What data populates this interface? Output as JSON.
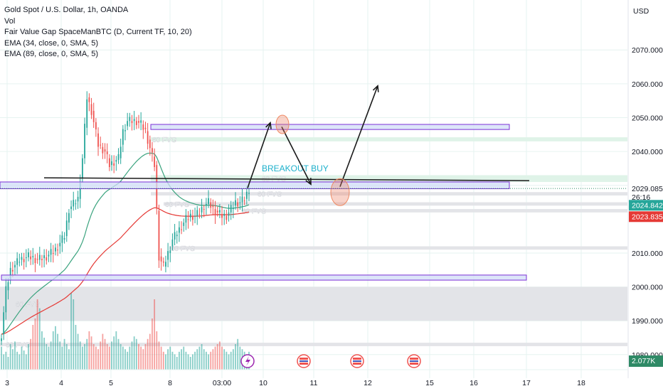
{
  "legend": {
    "symbol": "Gold Spot / U.S. Dollar, 1h, OANDA",
    "vol": "Vol",
    "fvg": "Fair Value Gap SpaceManBTC (D, Current TF, 10, 20)",
    "ema34": "EMA (34, close, 0, SMA, 5)",
    "ema89": "EMA (89, close, 0, SMA, 5)"
  },
  "colors": {
    "up": "#26a69a",
    "down": "#ef5350",
    "ema34": "#3aa37e",
    "ema89": "#e53935",
    "fvg_green": "#dff3e8",
    "fvg_grey": "#e3e4e8",
    "zone_fill": "#d0dcf7",
    "zone_border": "#7b2fd6",
    "annotation": "#1eb1cc",
    "last_price_bg": "#2f8a66",
    "ema_price_bg": "#26a69a",
    "ema89_price_bg": "#e53935"
  },
  "chart_data": {
    "type": "candlestick",
    "currency": "USD",
    "y_axis": {
      "ticks": [
        2070,
        2060,
        2050,
        2040,
        2030,
        2010,
        2000,
        1990,
        1980
      ],
      "tick_labels": [
        "2070.000",
        "2060.000",
        "2050.000",
        "2040.000",
        "2030.000",
        "2010.000",
        "2000.000",
        "1990.000",
        "1980.000"
      ],
      "ylim": [
        1974.5,
        2079.5
      ]
    },
    "x_axis": {
      "tick_labels": [
        "3",
        "4",
        "5",
        "8",
        "03:00",
        "10",
        "11",
        "12",
        "15",
        "16",
        "17",
        "18"
      ]
    },
    "price_labels": {
      "last": "2029.085",
      "countdown": "26:16",
      "ema34": "2024.842",
      "ema89": "2023.835",
      "volume": "2.077K"
    },
    "candle_anchors": [
      [
        0,
        1986
      ],
      [
        2,
        1999
      ],
      [
        4,
        2005
      ],
      [
        8,
        2008
      ],
      [
        12,
        2009
      ],
      [
        16,
        2008
      ],
      [
        20,
        2009
      ],
      [
        24,
        2011
      ],
      [
        28,
        2015
      ],
      [
        30,
        2023
      ],
      [
        34,
        2026
      ],
      [
        36,
        2038
      ],
      [
        38,
        2056
      ],
      [
        40,
        2052
      ],
      [
        43,
        2042
      ],
      [
        46,
        2040
      ],
      [
        48,
        2036
      ],
      [
        50,
        2037
      ],
      [
        52,
        2038
      ],
      [
        54,
        2046
      ],
      [
        56,
        2049
      ],
      [
        58,
        2049
      ],
      [
        60,
        2049
      ],
      [
        62,
        2048
      ],
      [
        64,
        2046
      ],
      [
        66,
        2041
      ],
      [
        68,
        2036
      ],
      [
        70,
        2009
      ],
      [
        72,
        2006
      ],
      [
        74,
        2010
      ],
      [
        76,
        2014
      ],
      [
        78,
        2016
      ],
      [
        80,
        2018
      ],
      [
        82,
        2020
      ],
      [
        84,
        2021
      ],
      [
        86,
        2021
      ],
      [
        88,
        2022
      ],
      [
        90,
        2024
      ],
      [
        92,
        2025
      ],
      [
        94,
        2023
      ],
      [
        96,
        2022
      ],
      [
        98,
        2021
      ],
      [
        100,
        2021
      ],
      [
        102,
        2023
      ],
      [
        104,
        2025
      ],
      [
        106,
        2025
      ],
      [
        108,
        2026
      ],
      [
        110,
        2029
      ]
    ],
    "volume_profile": [
      18,
      12,
      14,
      10,
      20,
      16,
      22,
      14,
      12,
      18,
      15,
      12,
      20,
      24,
      35,
      40,
      55,
      48,
      30,
      25,
      20,
      18,
      22,
      30,
      34,
      28,
      22,
      18,
      24,
      20,
      16,
      60,
      55,
      35,
      28,
      22,
      18,
      20,
      24,
      30,
      26,
      20,
      18,
      16,
      22,
      28,
      24,
      20,
      18,
      22,
      26,
      30,
      24,
      20,
      18,
      16,
      14,
      18,
      22,
      26,
      24,
      20,
      18,
      16,
      20,
      24,
      28,
      40,
      55,
      30,
      22,
      18,
      14,
      12,
      16,
      18,
      14,
      12,
      10,
      14,
      16,
      18,
      14,
      12,
      10,
      12,
      14,
      16,
      18,
      20,
      16,
      14,
      12,
      14,
      16,
      18,
      20,
      22,
      18,
      16,
      14,
      12,
      14,
      16,
      20,
      24,
      18,
      16,
      14,
      12,
      14
    ],
    "candle_count": 111,
    "fvg_zones": [
      {
        "label": "60 FVG",
        "low": 2043.0,
        "high": 2044.2,
        "color": "green"
      },
      {
        "label": "60 FVG",
        "low": 2031.0,
        "high": 2033.0,
        "color": "green"
      },
      {
        "label": "60 FVG",
        "low": 2027.0,
        "high": 2028.0,
        "color": "grey"
      },
      {
        "label": "60 FVG",
        "low": 2024.0,
        "high": 2025.0,
        "color": "grey"
      },
      {
        "label": "60 FVG",
        "low": 2022.0,
        "high": 2023.0,
        "color": "grey"
      },
      {
        "label": "60 FVG",
        "low": 2011.0,
        "high": 2012.0,
        "color": "grey"
      },
      {
        "label": "60 FVG",
        "low": 1990.0,
        "high": 2000.0,
        "color": "grey"
      },
      {
        "label": "60 FVG",
        "low": 1982.5,
        "high": 1983.5,
        "color": "grey"
      }
    ],
    "zones": [
      {
        "low": 2046.5,
        "high": 2048.0
      },
      {
        "low": 2029.0,
        "high": 2031.0
      },
      {
        "low": 2002.0,
        "high": 2003.5
      }
    ],
    "breakout_level": 2031.8,
    "annotation": "BREAKOUT BUY"
  }
}
